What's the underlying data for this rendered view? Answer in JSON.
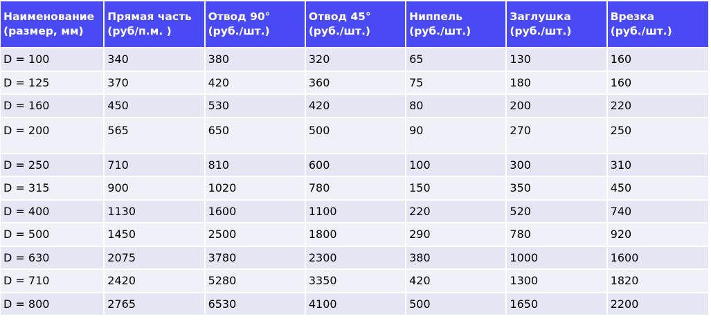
{
  "columns": [
    {
      "line1": "Наименование",
      "line2": "(размер, мм)"
    },
    {
      "line1": "Прямая часть",
      "line2": "(руб/п.м. )"
    },
    {
      "line1": "Отвод 90°",
      "line2": "(руб./шт.)"
    },
    {
      "line1": "Отвод 45°",
      "line2": "(руб./шт.)"
    },
    {
      "line1": "Ниппель",
      "line2": "(руб./шт.)"
    },
    {
      "line1": "Заглушка",
      "line2": "(руб./шт.)"
    },
    {
      "line1": "Врезка",
      "line2": "(руб./шт.)"
    }
  ],
  "rows": [
    [
      "D = 100",
      "340",
      "380",
      "320",
      "65",
      "130",
      "160"
    ],
    [
      "D = 125",
      "370",
      "420",
      "360",
      "75",
      "180",
      "160"
    ],
    [
      "D = 160",
      "450",
      "530",
      "420",
      "80",
      "200",
      "220"
    ],
    [
      "D = 200",
      "565",
      "650",
      "500",
      "90",
      "270",
      "250"
    ],
    [
      "D = 250",
      "710",
      "810",
      "600",
      "100",
      "300",
      "310"
    ],
    [
      "D = 315",
      "900",
      "1020",
      "780",
      "150",
      "350",
      "450"
    ],
    [
      "D = 400",
      "1130",
      "1600",
      "1100",
      "220",
      "520",
      "740"
    ],
    [
      "D = 500",
      "1450",
      "2500",
      "1800",
      "290",
      "780",
      "920"
    ],
    [
      "D = 630",
      "2075",
      "3780",
      "2300",
      "380",
      "1000",
      "1600"
    ],
    [
      "D = 710",
      "2420",
      "5280",
      "3350",
      "420",
      "1300",
      "1820"
    ],
    [
      "D = 800",
      "2765",
      "6530",
      "4100",
      "500",
      "1650",
      "2200"
    ]
  ],
  "colors": {
    "header_bg": "#4a4af4",
    "header_text": "#ffffff",
    "row_bg_odd": "#e4e6f4",
    "row_bg_even": "#eff0f8"
  }
}
